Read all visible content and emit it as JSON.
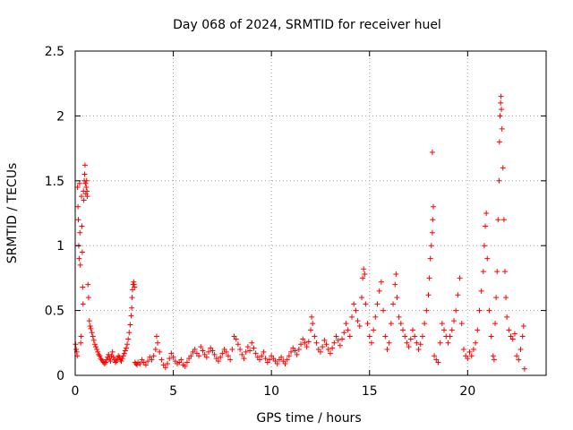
{
  "chart_data": {
    "type": "scatter",
    "title": "Day 068 of 2024, SRMTID for receiver huel",
    "xlabel": "GPS time / hours",
    "ylabel": "SRMTID / TECUs",
    "xlim": [
      0,
      24
    ],
    "ylim": [
      0,
      2.5
    ],
    "xticks": [
      0,
      5,
      10,
      15,
      20
    ],
    "xtick_labels": [
      "0",
      "5",
      "10",
      "15",
      "20"
    ],
    "yticks": [
      0,
      0.5,
      1,
      1.5,
      2,
      2.5
    ],
    "ytick_labels": [
      "0",
      "0.5",
      "1",
      "1.5",
      "2",
      "2.5"
    ],
    "grid": true,
    "marker": "+",
    "series": [
      {
        "name": "SRMTID",
        "color": "#ff0000",
        "points": [
          [
            0.02,
            0.24
          ],
          [
            0.05,
            0.2
          ],
          [
            0.08,
            0.18
          ],
          [
            0.1,
            0.15
          ],
          [
            0.12,
            1.45
          ],
          [
            0.14,
            1.3
          ],
          [
            0.16,
            1.2
          ],
          [
            0.18,
            1.0
          ],
          [
            0.2,
            0.9
          ],
          [
            0.22,
            1.48
          ],
          [
            0.24,
            1.1
          ],
          [
            0.26,
            0.85
          ],
          [
            0.28,
            0.25
          ],
          [
            0.3,
            0.3
          ],
          [
            0.32,
            1.38
          ],
          [
            0.34,
            1.15
          ],
          [
            0.36,
            0.95
          ],
          [
            0.38,
            0.68
          ],
          [
            0.4,
            0.55
          ],
          [
            0.42,
            1.42
          ],
          [
            0.44,
            1.35
          ],
          [
            0.46,
            1.5
          ],
          [
            0.48,
            1.55
          ],
          [
            0.5,
            1.62
          ],
          [
            0.52,
            1.48
          ],
          [
            0.54,
            1.4
          ],
          [
            0.56,
            1.45
          ],
          [
            0.58,
            1.5
          ],
          [
            0.6,
            1.42
          ],
          [
            0.62,
            1.38
          ],
          [
            0.65,
            0.7
          ],
          [
            0.68,
            0.6
          ],
          [
            0.72,
            0.42
          ],
          [
            0.76,
            0.38
          ],
          [
            0.8,
            0.36
          ],
          [
            0.85,
            0.33
          ],
          [
            0.9,
            0.3
          ],
          [
            0.95,
            0.27
          ],
          [
            1.0,
            0.24
          ],
          [
            1.05,
            0.22
          ],
          [
            1.1,
            0.2
          ],
          [
            1.15,
            0.18
          ],
          [
            1.2,
            0.16
          ],
          [
            1.25,
            0.15
          ],
          [
            1.3,
            0.13
          ],
          [
            1.35,
            0.12
          ],
          [
            1.4,
            0.11
          ],
          [
            1.45,
            0.1
          ],
          [
            1.5,
            0.09
          ],
          [
            1.55,
            0.1
          ],
          [
            1.6,
            0.12
          ],
          [
            1.65,
            0.14
          ],
          [
            1.7,
            0.16
          ],
          [
            1.75,
            0.13
          ],
          [
            1.8,
            0.11
          ],
          [
            1.85,
            0.15
          ],
          [
            1.9,
            0.18
          ],
          [
            1.95,
            0.14
          ],
          [
            2.0,
            0.12
          ],
          [
            2.05,
            0.1
          ],
          [
            2.1,
            0.11
          ],
          [
            2.15,
            0.13
          ],
          [
            2.2,
            0.15
          ],
          [
            2.25,
            0.14
          ],
          [
            2.3,
            0.12
          ],
          [
            2.35,
            0.11
          ],
          [
            2.4,
            0.13
          ],
          [
            2.45,
            0.15
          ],
          [
            2.5,
            0.17
          ],
          [
            2.55,
            0.19
          ],
          [
            2.6,
            0.21
          ],
          [
            2.65,
            0.24
          ],
          [
            2.7,
            0.28
          ],
          [
            2.75,
            0.33
          ],
          [
            2.8,
            0.39
          ],
          [
            2.85,
            0.46
          ],
          [
            2.88,
            0.52
          ],
          [
            2.9,
            0.6
          ],
          [
            2.92,
            0.66
          ],
          [
            2.95,
            0.7
          ],
          [
            2.98,
            0.72
          ],
          [
            3.0,
            0.7
          ],
          [
            3.02,
            0.68
          ],
          [
            3.05,
            0.1
          ],
          [
            3.1,
            0.09
          ],
          [
            3.15,
            0.08
          ],
          [
            3.2,
            0.1
          ],
          [
            3.3,
            0.09
          ],
          [
            3.4,
            0.12
          ],
          [
            3.5,
            0.1
          ],
          [
            3.6,
            0.08
          ],
          [
            3.7,
            0.11
          ],
          [
            3.8,
            0.14
          ],
          [
            3.9,
            0.12
          ],
          [
            4.0,
            0.15
          ],
          [
            4.1,
            0.2
          ],
          [
            4.15,
            0.3
          ],
          [
            4.2,
            0.25
          ],
          [
            4.3,
            0.18
          ],
          [
            4.4,
            0.12
          ],
          [
            4.5,
            0.08
          ],
          [
            4.6,
            0.06
          ],
          [
            4.7,
            0.09
          ],
          [
            4.8,
            0.13
          ],
          [
            4.9,
            0.17
          ],
          [
            5.0,
            0.14
          ],
          [
            5.1,
            0.11
          ],
          [
            5.2,
            0.09
          ],
          [
            5.3,
            0.1
          ],
          [
            5.4,
            0.12
          ],
          [
            5.5,
            0.08
          ],
          [
            5.6,
            0.07
          ],
          [
            5.7,
            0.1
          ],
          [
            5.8,
            0.13
          ],
          [
            5.9,
            0.15
          ],
          [
            6.0,
            0.18
          ],
          [
            6.1,
            0.2
          ],
          [
            6.2,
            0.17
          ],
          [
            6.3,
            0.15
          ],
          [
            6.4,
            0.22
          ],
          [
            6.5,
            0.19
          ],
          [
            6.6,
            0.16
          ],
          [
            6.7,
            0.14
          ],
          [
            6.8,
            0.18
          ],
          [
            6.9,
            0.21
          ],
          [
            7.0,
            0.19
          ],
          [
            7.1,
            0.16
          ],
          [
            7.2,
            0.13
          ],
          [
            7.3,
            0.11
          ],
          [
            7.4,
            0.14
          ],
          [
            7.5,
            0.17
          ],
          [
            7.6,
            0.2
          ],
          [
            7.7,
            0.18
          ],
          [
            7.8,
            0.15
          ],
          [
            7.9,
            0.12
          ],
          [
            8.0,
            0.2
          ],
          [
            8.1,
            0.3
          ],
          [
            8.2,
            0.28
          ],
          [
            8.3,
            0.24
          ],
          [
            8.4,
            0.2
          ],
          [
            8.5,
            0.16
          ],
          [
            8.6,
            0.13
          ],
          [
            8.7,
            0.18
          ],
          [
            8.8,
            0.22
          ],
          [
            8.9,
            0.19
          ],
          [
            9.0,
            0.25
          ],
          [
            9.1,
            0.21
          ],
          [
            9.2,
            0.17
          ],
          [
            9.3,
            0.14
          ],
          [
            9.4,
            0.12
          ],
          [
            9.5,
            0.15
          ],
          [
            9.6,
            0.18
          ],
          [
            9.7,
            0.13
          ],
          [
            9.8,
            0.1
          ],
          [
            9.9,
            0.12
          ],
          [
            10.0,
            0.15
          ],
          [
            10.1,
            0.13
          ],
          [
            10.2,
            0.11
          ],
          [
            10.3,
            0.09
          ],
          [
            10.4,
            0.12
          ],
          [
            10.5,
            0.14
          ],
          [
            10.6,
            0.11
          ],
          [
            10.7,
            0.09
          ],
          [
            10.8,
            0.12
          ],
          [
            10.9,
            0.15
          ],
          [
            11.0,
            0.18
          ],
          [
            11.1,
            0.21
          ],
          [
            11.2,
            0.19
          ],
          [
            11.3,
            0.16
          ],
          [
            11.4,
            0.2
          ],
          [
            11.5,
            0.24
          ],
          [
            11.6,
            0.28
          ],
          [
            11.7,
            0.25
          ],
          [
            11.8,
            0.22
          ],
          [
            11.9,
            0.26
          ],
          [
            12.0,
            0.35
          ],
          [
            12.05,
            0.45
          ],
          [
            12.1,
            0.4
          ],
          [
            12.2,
            0.3
          ],
          [
            12.3,
            0.25
          ],
          [
            12.4,
            0.2
          ],
          [
            12.5,
            0.18
          ],
          [
            12.6,
            0.22
          ],
          [
            12.7,
            0.27
          ],
          [
            12.8,
            0.24
          ],
          [
            12.9,
            0.2
          ],
          [
            13.0,
            0.17
          ],
          [
            13.1,
            0.21
          ],
          [
            13.2,
            0.25
          ],
          [
            13.3,
            0.3
          ],
          [
            13.4,
            0.27
          ],
          [
            13.5,
            0.23
          ],
          [
            13.6,
            0.28
          ],
          [
            13.7,
            0.33
          ],
          [
            13.8,
            0.4
          ],
          [
            13.9,
            0.35
          ],
          [
            14.0,
            0.3
          ],
          [
            14.1,
            0.45
          ],
          [
            14.2,
            0.55
          ],
          [
            14.3,
            0.5
          ],
          [
            14.4,
            0.42
          ],
          [
            14.5,
            0.38
          ],
          [
            14.6,
            0.6
          ],
          [
            14.65,
            0.75
          ],
          [
            14.7,
            0.82
          ],
          [
            14.75,
            0.78
          ],
          [
            14.8,
            0.55
          ],
          [
            14.9,
            0.4
          ],
          [
            15.0,
            0.3
          ],
          [
            15.1,
            0.25
          ],
          [
            15.2,
            0.35
          ],
          [
            15.3,
            0.45
          ],
          [
            15.4,
            0.55
          ],
          [
            15.5,
            0.65
          ],
          [
            15.6,
            0.72
          ],
          [
            15.7,
            0.5
          ],
          [
            15.8,
            0.3
          ],
          [
            15.9,
            0.2
          ],
          [
            16.0,
            0.25
          ],
          [
            16.1,
            0.4
          ],
          [
            16.2,
            0.55
          ],
          [
            16.3,
            0.7
          ],
          [
            16.35,
            0.78
          ],
          [
            16.4,
            0.6
          ],
          [
            16.5,
            0.45
          ],
          [
            16.6,
            0.4
          ],
          [
            16.7,
            0.35
          ],
          [
            16.8,
            0.3
          ],
          [
            16.9,
            0.25
          ],
          [
            17.0,
            0.22
          ],
          [
            17.1,
            0.28
          ],
          [
            17.2,
            0.35
          ],
          [
            17.3,
            0.3
          ],
          [
            17.4,
            0.25
          ],
          [
            17.5,
            0.2
          ],
          [
            17.6,
            0.24
          ],
          [
            17.7,
            0.3
          ],
          [
            17.8,
            0.4
          ],
          [
            17.9,
            0.5
          ],
          [
            18.0,
            0.62
          ],
          [
            18.05,
            0.75
          ],
          [
            18.1,
            0.9
          ],
          [
            18.15,
            1.0
          ],
          [
            18.2,
            1.1
          ],
          [
            18.22,
            1.2
          ],
          [
            18.25,
            1.3
          ],
          [
            18.2,
            1.72
          ],
          [
            18.3,
            0.15
          ],
          [
            18.4,
            0.12
          ],
          [
            18.5,
            0.1
          ],
          [
            18.6,
            0.25
          ],
          [
            18.7,
            0.4
          ],
          [
            18.8,
            0.35
          ],
          [
            18.9,
            0.3
          ],
          [
            19.0,
            0.25
          ],
          [
            19.1,
            0.3
          ],
          [
            19.2,
            0.35
          ],
          [
            19.3,
            0.42
          ],
          [
            19.4,
            0.5
          ],
          [
            19.5,
            0.62
          ],
          [
            19.6,
            0.75
          ],
          [
            19.7,
            0.4
          ],
          [
            19.8,
            0.2
          ],
          [
            19.9,
            0.15
          ],
          [
            20.0,
            0.13
          ],
          [
            20.1,
            0.18
          ],
          [
            20.2,
            0.15
          ],
          [
            20.3,
            0.2
          ],
          [
            20.4,
            0.25
          ],
          [
            20.5,
            0.35
          ],
          [
            20.6,
            0.5
          ],
          [
            20.7,
            0.65
          ],
          [
            20.8,
            0.8
          ],
          [
            20.85,
            1.0
          ],
          [
            20.9,
            1.15
          ],
          [
            20.95,
            1.25
          ],
          [
            21.0,
            0.9
          ],
          [
            21.1,
            0.5
          ],
          [
            21.2,
            0.3
          ],
          [
            21.3,
            0.15
          ],
          [
            21.35,
            0.12
          ],
          [
            21.4,
            0.4
          ],
          [
            21.45,
            0.6
          ],
          [
            21.5,
            0.8
          ],
          [
            21.55,
            1.2
          ],
          [
            21.6,
            1.5
          ],
          [
            21.62,
            1.8
          ],
          [
            21.65,
            2.0
          ],
          [
            21.68,
            2.1
          ],
          [
            21.7,
            2.15
          ],
          [
            21.72,
            2.05
          ],
          [
            21.75,
            1.9
          ],
          [
            21.8,
            1.6
          ],
          [
            21.85,
            1.2
          ],
          [
            21.9,
            0.8
          ],
          [
            21.95,
            0.6
          ],
          [
            22.0,
            0.45
          ],
          [
            22.1,
            0.35
          ],
          [
            22.2,
            0.3
          ],
          [
            22.3,
            0.28
          ],
          [
            22.4,
            0.32
          ],
          [
            22.5,
            0.15
          ],
          [
            22.6,
            0.12
          ],
          [
            22.7,
            0.2
          ],
          [
            22.8,
            0.3
          ],
          [
            22.85,
            0.38
          ],
          [
            22.9,
            0.05
          ]
        ]
      }
    ]
  }
}
